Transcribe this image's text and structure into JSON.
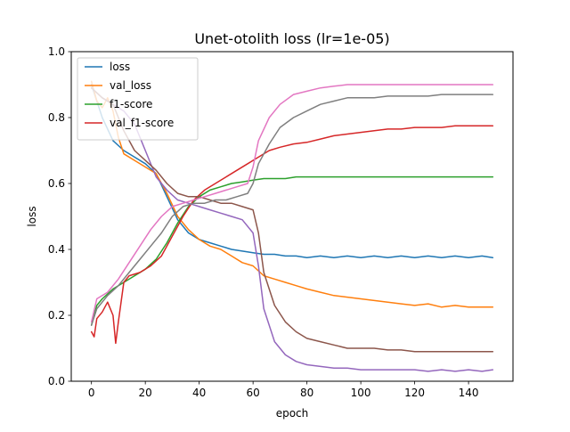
{
  "chart_data": {
    "type": "line",
    "title": "Unet-otolith loss (lr=1e-05)",
    "xlabel": "epoch",
    "ylabel": "loss",
    "xlim": [
      -7.5,
      156.5
    ],
    "ylim": [
      0.0,
      1.0
    ],
    "xticks": [
      0,
      20,
      40,
      60,
      80,
      100,
      120,
      140
    ],
    "yticks": [
      0.0,
      0.2,
      0.4,
      0.6,
      0.8,
      1.0
    ],
    "xtick_labels": [
      "0",
      "20",
      "40",
      "60",
      "80",
      "100",
      "120",
      "140"
    ],
    "ytick_labels": [
      "0.0",
      "0.2",
      "0.4",
      "0.6",
      "0.8",
      "1.0"
    ],
    "legend_position": "upper-left",
    "grid": false,
    "series": [
      {
        "name": "loss",
        "color": "#1f77b4",
        "in_legend": true,
        "points": [
          [
            0,
            0.9
          ],
          [
            4,
            0.8
          ],
          [
            8,
            0.73
          ],
          [
            12,
            0.7
          ],
          [
            16,
            0.68
          ],
          [
            20,
            0.66
          ],
          [
            24,
            0.63
          ],
          [
            28,
            0.56
          ],
          [
            32,
            0.49
          ],
          [
            36,
            0.45
          ],
          [
            40,
            0.43
          ],
          [
            44,
            0.42
          ],
          [
            48,
            0.41
          ],
          [
            52,
            0.4
          ],
          [
            56,
            0.395
          ],
          [
            60,
            0.39
          ],
          [
            64,
            0.385
          ],
          [
            68,
            0.385
          ],
          [
            72,
            0.38
          ],
          [
            76,
            0.38
          ],
          [
            80,
            0.375
          ],
          [
            85,
            0.38
          ],
          [
            90,
            0.375
          ],
          [
            95,
            0.38
          ],
          [
            100,
            0.375
          ],
          [
            105,
            0.38
          ],
          [
            110,
            0.375
          ],
          [
            115,
            0.38
          ],
          [
            120,
            0.375
          ],
          [
            125,
            0.38
          ],
          [
            130,
            0.375
          ],
          [
            135,
            0.38
          ],
          [
            140,
            0.375
          ],
          [
            145,
            0.38
          ],
          [
            149,
            0.375
          ]
        ]
      },
      {
        "name": "val_loss",
        "color": "#ff7f0e",
        "in_legend": true,
        "points": [
          [
            0,
            0.91
          ],
          [
            2,
            0.85
          ],
          [
            4,
            0.83
          ],
          [
            6,
            0.86
          ],
          [
            8,
            0.82
          ],
          [
            10,
            0.74
          ],
          [
            12,
            0.69
          ],
          [
            16,
            0.67
          ],
          [
            20,
            0.65
          ],
          [
            24,
            0.63
          ],
          [
            28,
            0.57
          ],
          [
            32,
            0.5
          ],
          [
            36,
            0.46
          ],
          [
            40,
            0.43
          ],
          [
            44,
            0.41
          ],
          [
            48,
            0.4
          ],
          [
            52,
            0.38
          ],
          [
            56,
            0.36
          ],
          [
            60,
            0.35
          ],
          [
            64,
            0.32
          ],
          [
            68,
            0.31
          ],
          [
            72,
            0.3
          ],
          [
            76,
            0.29
          ],
          [
            80,
            0.28
          ],
          [
            85,
            0.27
          ],
          [
            90,
            0.26
          ],
          [
            95,
            0.255
          ],
          [
            100,
            0.25
          ],
          [
            105,
            0.245
          ],
          [
            110,
            0.24
          ],
          [
            115,
            0.235
          ],
          [
            120,
            0.23
          ],
          [
            125,
            0.235
          ],
          [
            130,
            0.225
          ],
          [
            135,
            0.23
          ],
          [
            140,
            0.225
          ],
          [
            145,
            0.225
          ],
          [
            149,
            0.225
          ]
        ]
      },
      {
        "name": "f1-score",
        "color": "#2ca02c",
        "in_legend": true,
        "points": [
          [
            0,
            0.17
          ],
          [
            2,
            0.23
          ],
          [
            4,
            0.25
          ],
          [
            8,
            0.28
          ],
          [
            12,
            0.3
          ],
          [
            16,
            0.32
          ],
          [
            20,
            0.34
          ],
          [
            24,
            0.37
          ],
          [
            28,
            0.42
          ],
          [
            32,
            0.48
          ],
          [
            36,
            0.53
          ],
          [
            40,
            0.56
          ],
          [
            44,
            0.58
          ],
          [
            48,
            0.59
          ],
          [
            52,
            0.6
          ],
          [
            56,
            0.605
          ],
          [
            60,
            0.61
          ],
          [
            64,
            0.615
          ],
          [
            68,
            0.615
          ],
          [
            72,
            0.615
          ],
          [
            76,
            0.62
          ],
          [
            80,
            0.62
          ],
          [
            85,
            0.62
          ],
          [
            90,
            0.62
          ],
          [
            95,
            0.62
          ],
          [
            100,
            0.62
          ],
          [
            105,
            0.62
          ],
          [
            110,
            0.62
          ],
          [
            115,
            0.62
          ],
          [
            120,
            0.62
          ],
          [
            125,
            0.62
          ],
          [
            130,
            0.62
          ],
          [
            135,
            0.62
          ],
          [
            140,
            0.62
          ],
          [
            145,
            0.62
          ],
          [
            149,
            0.62
          ]
        ]
      },
      {
        "name": "val_f1-score",
        "color": "#d62728",
        "in_legend": true,
        "points": [
          [
            0,
            0.15
          ],
          [
            1,
            0.135
          ],
          [
            2,
            0.19
          ],
          [
            4,
            0.21
          ],
          [
            6,
            0.24
          ],
          [
            8,
            0.2
          ],
          [
            9,
            0.115
          ],
          [
            10,
            0.18
          ],
          [
            12,
            0.3
          ],
          [
            14,
            0.32
          ],
          [
            18,
            0.33
          ],
          [
            22,
            0.35
          ],
          [
            26,
            0.38
          ],
          [
            30,
            0.44
          ],
          [
            34,
            0.5
          ],
          [
            38,
            0.55
          ],
          [
            42,
            0.58
          ],
          [
            46,
            0.6
          ],
          [
            50,
            0.62
          ],
          [
            54,
            0.64
          ],
          [
            58,
            0.66
          ],
          [
            62,
            0.68
          ],
          [
            66,
            0.7
          ],
          [
            70,
            0.71
          ],
          [
            75,
            0.72
          ],
          [
            80,
            0.725
          ],
          [
            85,
            0.735
          ],
          [
            90,
            0.745
          ],
          [
            95,
            0.75
          ],
          [
            100,
            0.755
          ],
          [
            105,
            0.76
          ],
          [
            110,
            0.765
          ],
          [
            115,
            0.765
          ],
          [
            120,
            0.77
          ],
          [
            125,
            0.77
          ],
          [
            130,
            0.77
          ],
          [
            135,
            0.775
          ],
          [
            140,
            0.775
          ],
          [
            145,
            0.775
          ],
          [
            149,
            0.775
          ]
        ]
      },
      {
        "name": "",
        "color": "#9467bd",
        "in_legend": false,
        "points": [
          [
            0,
            0.89
          ],
          [
            4,
            0.86
          ],
          [
            8,
            0.84
          ],
          [
            12,
            0.82
          ],
          [
            16,
            0.78
          ],
          [
            20,
            0.7
          ],
          [
            24,
            0.62
          ],
          [
            28,
            0.58
          ],
          [
            32,
            0.55
          ],
          [
            36,
            0.54
          ],
          [
            40,
            0.53
          ],
          [
            44,
            0.52
          ],
          [
            48,
            0.51
          ],
          [
            52,
            0.5
          ],
          [
            56,
            0.49
          ],
          [
            60,
            0.45
          ],
          [
            62,
            0.35
          ],
          [
            64,
            0.22
          ],
          [
            68,
            0.12
          ],
          [
            72,
            0.08
          ],
          [
            76,
            0.06
          ],
          [
            80,
            0.05
          ],
          [
            85,
            0.045
          ],
          [
            90,
            0.04
          ],
          [
            95,
            0.04
          ],
          [
            100,
            0.035
          ],
          [
            105,
            0.035
          ],
          [
            110,
            0.035
          ],
          [
            115,
            0.035
          ],
          [
            120,
            0.035
          ],
          [
            125,
            0.03
          ],
          [
            130,
            0.035
          ],
          [
            135,
            0.03
          ],
          [
            140,
            0.035
          ],
          [
            145,
            0.03
          ],
          [
            149,
            0.035
          ]
        ]
      },
      {
        "name": "",
        "color": "#8c564b",
        "in_legend": false,
        "points": [
          [
            0,
            0.89
          ],
          [
            4,
            0.86
          ],
          [
            8,
            0.84
          ],
          [
            12,
            0.76
          ],
          [
            16,
            0.7
          ],
          [
            20,
            0.67
          ],
          [
            24,
            0.64
          ],
          [
            28,
            0.6
          ],
          [
            32,
            0.57
          ],
          [
            36,
            0.56
          ],
          [
            40,
            0.56
          ],
          [
            44,
            0.55
          ],
          [
            48,
            0.54
          ],
          [
            52,
            0.54
          ],
          [
            56,
            0.53
          ],
          [
            60,
            0.52
          ],
          [
            62,
            0.45
          ],
          [
            64,
            0.33
          ],
          [
            68,
            0.23
          ],
          [
            72,
            0.18
          ],
          [
            76,
            0.15
          ],
          [
            80,
            0.13
          ],
          [
            85,
            0.12
          ],
          [
            90,
            0.11
          ],
          [
            95,
            0.1
          ],
          [
            100,
            0.1
          ],
          [
            105,
            0.1
          ],
          [
            110,
            0.095
          ],
          [
            115,
            0.095
          ],
          [
            120,
            0.09
          ],
          [
            125,
            0.09
          ],
          [
            130,
            0.09
          ],
          [
            135,
            0.09
          ],
          [
            140,
            0.09
          ],
          [
            145,
            0.09
          ],
          [
            149,
            0.09
          ]
        ]
      },
      {
        "name": "",
        "color": "#e377c2",
        "in_legend": false,
        "points": [
          [
            0,
            0.18
          ],
          [
            2,
            0.25
          ],
          [
            6,
            0.27
          ],
          [
            10,
            0.31
          ],
          [
            14,
            0.36
          ],
          [
            18,
            0.41
          ],
          [
            22,
            0.46
          ],
          [
            26,
            0.5
          ],
          [
            30,
            0.53
          ],
          [
            34,
            0.54
          ],
          [
            38,
            0.55
          ],
          [
            42,
            0.56
          ],
          [
            46,
            0.57
          ],
          [
            50,
            0.58
          ],
          [
            54,
            0.59
          ],
          [
            58,
            0.6
          ],
          [
            60,
            0.65
          ],
          [
            62,
            0.73
          ],
          [
            66,
            0.8
          ],
          [
            70,
            0.84
          ],
          [
            75,
            0.87
          ],
          [
            80,
            0.88
          ],
          [
            85,
            0.89
          ],
          [
            90,
            0.895
          ],
          [
            95,
            0.9
          ],
          [
            100,
            0.9
          ],
          [
            105,
            0.9
          ],
          [
            110,
            0.9
          ],
          [
            115,
            0.9
          ],
          [
            120,
            0.9
          ],
          [
            125,
            0.9
          ],
          [
            130,
            0.9
          ],
          [
            135,
            0.9
          ],
          [
            140,
            0.9
          ],
          [
            145,
            0.9
          ],
          [
            149,
            0.9
          ]
        ]
      },
      {
        "name": "",
        "color": "#7f7f7f",
        "in_legend": false,
        "points": [
          [
            0,
            0.17
          ],
          [
            2,
            0.22
          ],
          [
            6,
            0.26
          ],
          [
            10,
            0.29
          ],
          [
            14,
            0.33
          ],
          [
            18,
            0.37
          ],
          [
            22,
            0.41
          ],
          [
            26,
            0.45
          ],
          [
            30,
            0.5
          ],
          [
            34,
            0.53
          ],
          [
            38,
            0.54
          ],
          [
            42,
            0.54
          ],
          [
            46,
            0.55
          ],
          [
            50,
            0.55
          ],
          [
            54,
            0.56
          ],
          [
            58,
            0.57
          ],
          [
            60,
            0.6
          ],
          [
            62,
            0.66
          ],
          [
            66,
            0.72
          ],
          [
            70,
            0.77
          ],
          [
            75,
            0.8
          ],
          [
            80,
            0.82
          ],
          [
            85,
            0.84
          ],
          [
            90,
            0.85
          ],
          [
            95,
            0.86
          ],
          [
            100,
            0.86
          ],
          [
            105,
            0.86
          ],
          [
            110,
            0.865
          ],
          [
            115,
            0.865
          ],
          [
            120,
            0.865
          ],
          [
            125,
            0.865
          ],
          [
            130,
            0.87
          ],
          [
            135,
            0.87
          ],
          [
            140,
            0.87
          ],
          [
            145,
            0.87
          ],
          [
            149,
            0.87
          ]
        ]
      }
    ]
  }
}
